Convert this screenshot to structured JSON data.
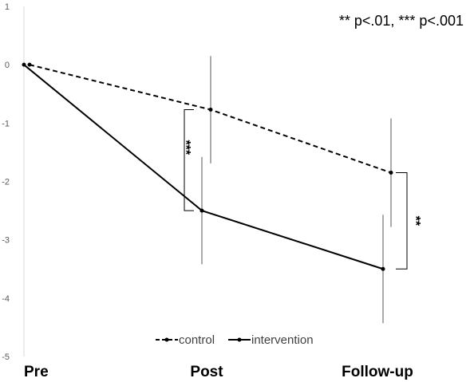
{
  "chart_data": {
    "type": "line",
    "title": "",
    "xlabel": "",
    "ylabel": "",
    "categories": [
      "Pre",
      "Post",
      "Follow-up"
    ],
    "ylim": [
      -5,
      1
    ],
    "yticks": [
      1,
      0,
      -1,
      -2,
      -3,
      -4,
      -5
    ],
    "grid": false,
    "legend_position": "bottom",
    "annotation": "** p<.01, *** p<.001",
    "series": [
      {
        "name": "control",
        "style": "dashed",
        "color": "#000000",
        "values": [
          0,
          -0.77,
          -1.85
        ],
        "error": [
          null,
          0.92,
          0.93
        ]
      },
      {
        "name": "intervention",
        "style": "solid",
        "color": "#000000",
        "values": [
          0,
          -2.5,
          -3.5
        ],
        "error": [
          null,
          0.92,
          0.93
        ]
      }
    ],
    "significance": [
      {
        "category": "Post",
        "label": "***"
      },
      {
        "category": "Follow-up",
        "label": "**"
      }
    ]
  }
}
